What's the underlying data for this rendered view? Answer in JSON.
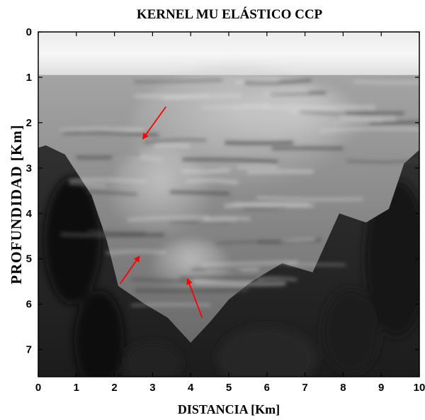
{
  "chart_data": {
    "type": "heatmap",
    "title": "KERNEL MU ELÁSTICO CCP",
    "xlabel": "DISTANCIA [Km]",
    "ylabel": "PROFUNDIDAD [Km]",
    "xlim": [
      0,
      10
    ],
    "ylim": [
      7.6,
      0
    ],
    "x_ticks": [
      "0",
      "1",
      "2",
      "3",
      "4",
      "5",
      "6",
      "7",
      "8",
      "9",
      "10"
    ],
    "y_ticks": [
      "0",
      "1",
      "2",
      "3",
      "4",
      "5",
      "6",
      "7"
    ],
    "colormap": "gray",
    "grid": false,
    "annotations": [
      {
        "type": "arrow",
        "color": "#ff0000",
        "from": [
          3.35,
          1.65
        ],
        "to": [
          2.75,
          2.35
        ]
      },
      {
        "type": "arrow",
        "color": "#ff0000",
        "from": [
          2.15,
          5.55
        ],
        "to": [
          2.65,
          4.95
        ]
      },
      {
        "type": "arrow",
        "color": "#ff0000",
        "from": [
          4.3,
          6.3
        ],
        "to": [
          3.92,
          5.45
        ]
      }
    ]
  }
}
